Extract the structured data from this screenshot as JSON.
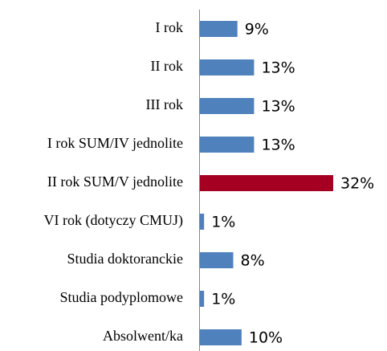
{
  "chart_data": {
    "type": "bar",
    "orientation": "horizontal",
    "categories": [
      "I rok",
      "II rok",
      "III rok",
      "I rok SUM/IV jednolite",
      "II rok SUM/V jednolite",
      "VI rok (dotyczy CMUJ)",
      "Studia doktoranckie",
      "Studia podyplomowe",
      "Absolwent/ka"
    ],
    "values": [
      9,
      13,
      13,
      13,
      32,
      1,
      8,
      1,
      10
    ],
    "value_labels": [
      "9%",
      "13%",
      "13%",
      "13%",
      "32%",
      "1%",
      "8%",
      "1%",
      "10%"
    ],
    "colors": [
      "#4f81bd",
      "#4f81bd",
      "#4f81bd",
      "#4f81bd",
      "#a50021",
      "#4f81bd",
      "#4f81bd",
      "#4f81bd",
      "#4f81bd"
    ]
  }
}
